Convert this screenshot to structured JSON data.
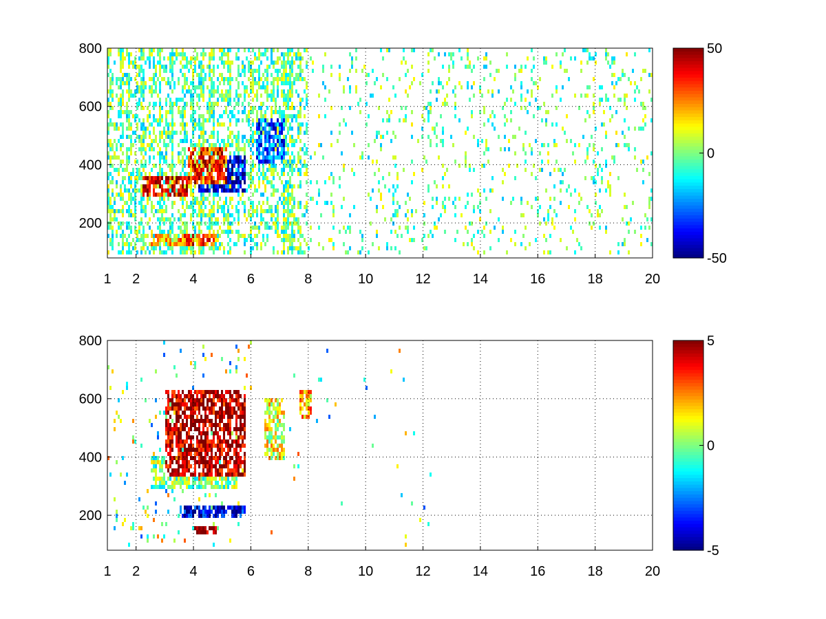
{
  "chart_data": [
    {
      "type": "heatmap",
      "title": "",
      "xlabel": "",
      "ylabel": "",
      "xlim": [
        1,
        20
      ],
      "ylim": [
        80,
        800
      ],
      "xticks": [
        1,
        2,
        4,
        6,
        8,
        10,
        12,
        14,
        16,
        18,
        20
      ],
      "yticks": [
        200,
        400,
        600,
        800
      ],
      "grid": true,
      "colormap": "jet",
      "colorbar": {
        "min": -50,
        "max": 50,
        "ticks": [
          50,
          0,
          -50
        ]
      },
      "features": [
        {
          "x": [
            2.2,
            3.8
          ],
          "y": [
            280,
            360
          ],
          "value": 40
        },
        {
          "x": [
            3.8,
            5.2
          ],
          "y": [
            320,
            460
          ],
          "value": 35
        },
        {
          "x": [
            4.2,
            5.8
          ],
          "y": [
            300,
            420
          ],
          "value": -40
        },
        {
          "x": [
            6.2,
            7.2
          ],
          "y": [
            400,
            560
          ],
          "value": -30
        },
        {
          "x": [
            3.5,
            4.8
          ],
          "y": [
            110,
            150
          ],
          "value": 30
        },
        {
          "x": [
            2.5,
            3.5
          ],
          "y": [
            110,
            150
          ],
          "value": 15
        }
      ],
      "noise": {
        "x": [
          1,
          20
        ],
        "y": [
          80,
          800
        ],
        "value_range": [
          -20,
          15
        ]
      }
    },
    {
      "type": "heatmap",
      "title": "",
      "xlabel": "",
      "ylabel": "",
      "xlim": [
        1,
        20
      ],
      "ylim": [
        80,
        800
      ],
      "xticks": [
        1,
        2,
        4,
        6,
        8,
        10,
        12,
        14,
        16,
        18,
        20
      ],
      "yticks": [
        200,
        400,
        600,
        800
      ],
      "grid": true,
      "colormap": "jet",
      "colorbar": {
        "min": -5,
        "max": 5,
        "ticks": [
          5,
          0,
          -5
        ]
      },
      "features": [
        {
          "x": [
            3.0,
            5.8
          ],
          "y": [
            320,
            620
          ],
          "value": 4.5
        },
        {
          "x": [
            2.5,
            5.5
          ],
          "y": [
            280,
            400
          ],
          "value": 0
        },
        {
          "x": [
            6.5,
            7.2
          ],
          "y": [
            380,
            600
          ],
          "value": 1
        },
        {
          "x": [
            7.7,
            8.1
          ],
          "y": [
            520,
            620
          ],
          "value": 2
        },
        {
          "x": [
            4.0,
            4.8
          ],
          "y": [
            120,
            150
          ],
          "value": 4.5
        },
        {
          "x": [
            3.5,
            5.8
          ],
          "y": [
            180,
            220
          ],
          "value": -4
        }
      ],
      "noise": {
        "x": [
          1,
          12.5
        ],
        "y": [
          80,
          800
        ],
        "value_range": [
          -3,
          3
        ]
      }
    }
  ]
}
